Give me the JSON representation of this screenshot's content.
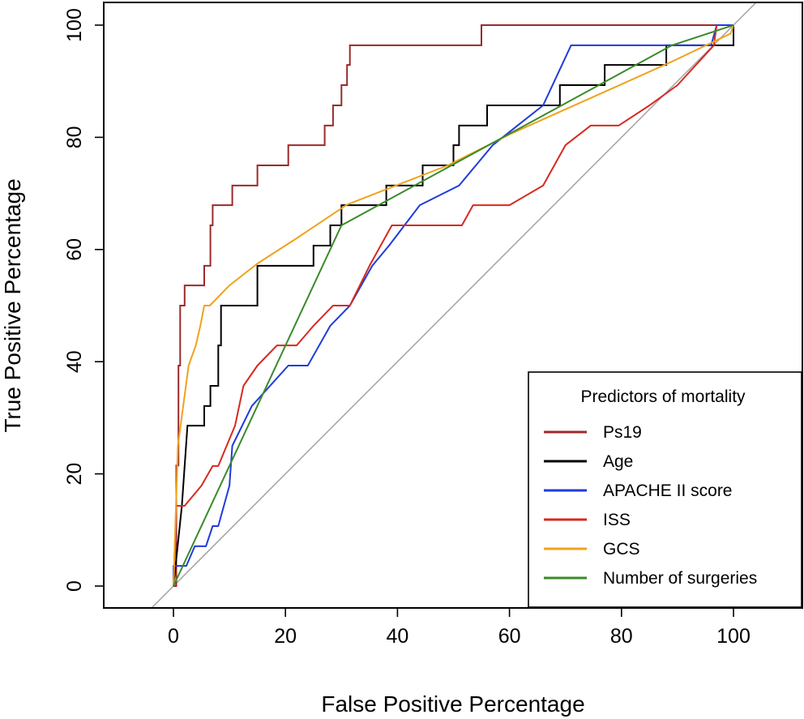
{
  "chart_data": {
    "type": "line",
    "title": "",
    "xlabel": "False Positive Percentage",
    "ylabel": "True Positive Percentage",
    "xlim": [
      -13,
      113
    ],
    "ylim": [
      -4,
      104
    ],
    "x_ticks": [
      0,
      20,
      40,
      60,
      80,
      100
    ],
    "y_ticks": [
      0,
      20,
      40,
      60,
      80,
      100
    ],
    "grid": false,
    "legend_placement": "bottom-right",
    "legend_title": "Predictors of mortality",
    "reference_line": {
      "x": [
        -5,
        104
      ],
      "y": [
        -5,
        104
      ],
      "color": "#a8a8a8"
    },
    "series": [
      {
        "name": "Ps19",
        "color": "#9b2a2a",
        "step": true,
        "x": [
          0,
          0.5,
          0.5,
          0.9,
          0.9,
          1.2,
          1.2,
          2,
          2,
          5.5,
          5.5,
          6.6,
          6.6,
          7,
          7,
          10.5,
          10.5,
          15,
          15,
          20.5,
          20.5,
          27,
          27,
          28.5,
          28.5,
          30,
          30,
          31,
          31,
          31.5,
          31.5,
          55,
          55,
          100
        ],
        "y": [
          0,
          0,
          21.5,
          21.5,
          39.3,
          39.3,
          50,
          50,
          53.6,
          53.6,
          57.1,
          57.1,
          64.3,
          64.3,
          67.9,
          67.9,
          71.4,
          71.4,
          75,
          75,
          78.6,
          78.6,
          82.1,
          82.1,
          85.7,
          85.7,
          89.3,
          89.3,
          92.9,
          92.9,
          96.4,
          96.4,
          100,
          100
        ]
      },
      {
        "name": "Age",
        "color": "#000000",
        "step": true,
        "x": [
          0,
          1.5,
          2.5,
          2.5,
          5.5,
          5.5,
          6.6,
          6.6,
          8,
          8,
          8.5,
          8.5,
          15,
          15,
          25,
          25,
          28,
          28,
          30,
          30,
          31,
          31,
          38,
          38,
          44.5,
          44.5,
          50,
          50,
          51,
          51,
          56,
          56,
          66,
          66,
          69,
          69,
          77,
          77,
          88,
          88,
          97,
          97,
          100,
          100
        ],
        "y": [
          0,
          14.3,
          28.6,
          28.6,
          28.6,
          32.1,
          32.1,
          35.7,
          35.7,
          42.9,
          42.9,
          50,
          50,
          57.1,
          57.1,
          60.7,
          60.7,
          64.3,
          64.3,
          67.9,
          67.9,
          67.9,
          67.9,
          71.4,
          71.4,
          75,
          75,
          78.6,
          78.6,
          82.1,
          82.1,
          85.7,
          85.7,
          85.7,
          85.7,
          89.3,
          89.3,
          92.9,
          92.9,
          96.4,
          96.4,
          96.4,
          96.4,
          100
        ]
      },
      {
        "name": "APACHE II score",
        "color": "#1f3bdc",
        "step": false,
        "x": [
          0,
          0,
          2.3,
          3.8,
          5.8,
          7,
          8,
          10,
          10.5,
          14,
          20.5,
          24,
          28,
          31.5,
          35.5,
          38.5,
          44,
          51,
          57,
          66,
          71,
          76.5,
          86,
          90,
          96,
          97,
          100
        ],
        "y": [
          0,
          3.6,
          3.6,
          7.1,
          7.1,
          10.7,
          10.7,
          17.9,
          25,
          32.1,
          39.3,
          39.3,
          46.4,
          50,
          57.1,
          60.7,
          67.9,
          71.4,
          78.6,
          85.7,
          96.4,
          96.4,
          96.4,
          96.4,
          96.4,
          100,
          100
        ]
      },
      {
        "name": "ISS",
        "color": "#d62a1f",
        "step": false,
        "x": [
          0,
          0.5,
          2,
          5,
          7,
          8,
          9.5,
          11,
          12.5,
          15,
          18.5,
          22,
          25,
          28.5,
          31.5,
          35,
          39,
          43,
          51.5,
          53.5,
          60,
          66,
          70,
          74.5,
          79.5,
          85,
          90,
          96.5,
          97
        ],
        "y": [
          0,
          14.3,
          14.3,
          17.9,
          21.4,
          21.4,
          25,
          28.6,
          35.7,
          39.3,
          42.9,
          42.9,
          46.4,
          50,
          50,
          57.1,
          64.3,
          64.3,
          64.3,
          67.9,
          67.9,
          71.4,
          78.6,
          82.1,
          82.1,
          85.7,
          89.3,
          96.4,
          100
        ]
      },
      {
        "name": "GCS",
        "color": "#f0a21c",
        "step": false,
        "x": [
          0,
          0.8,
          2.7,
          4,
          4.8,
          5.5,
          6.5,
          10,
          15,
          22,
          31,
          40,
          49,
          60,
          70,
          79,
          89,
          99.5,
          100
        ],
        "y": [
          0,
          25,
          39.3,
          42.9,
          46.4,
          50,
          50,
          53.6,
          57.5,
          62,
          68,
          71.5,
          75,
          80.5,
          85,
          89,
          93.5,
          98.5,
          100
        ],
        "smooth": true
      },
      {
        "name": "Number of surgeries",
        "color": "#3a8a2a",
        "step": false,
        "x": [
          0,
          30,
          89,
          100
        ],
        "y": [
          0,
          64.3,
          96.4,
          100
        ]
      }
    ]
  }
}
